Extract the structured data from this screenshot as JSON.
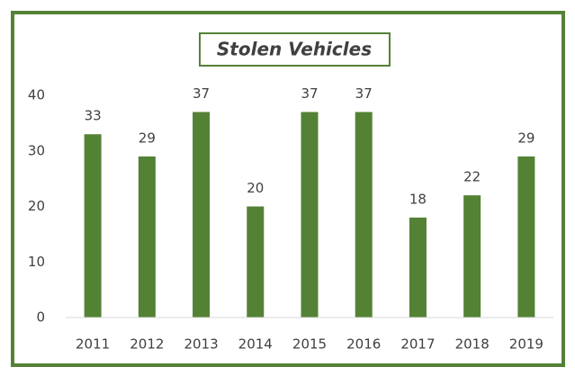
{
  "chart_data": {
    "type": "bar",
    "title": "Stolen Vehicles",
    "categories": [
      "2011",
      "2012",
      "2013",
      "2014",
      "2015",
      "2016",
      "2017",
      "2018",
      "2019"
    ],
    "values": [
      33,
      29,
      37,
      20,
      37,
      37,
      18,
      22,
      29
    ],
    "color": "#548235",
    "ylim": [
      0,
      40
    ],
    "yticks": [
      0,
      10,
      20,
      30,
      40
    ],
    "grid": false,
    "data_labels": true
  }
}
